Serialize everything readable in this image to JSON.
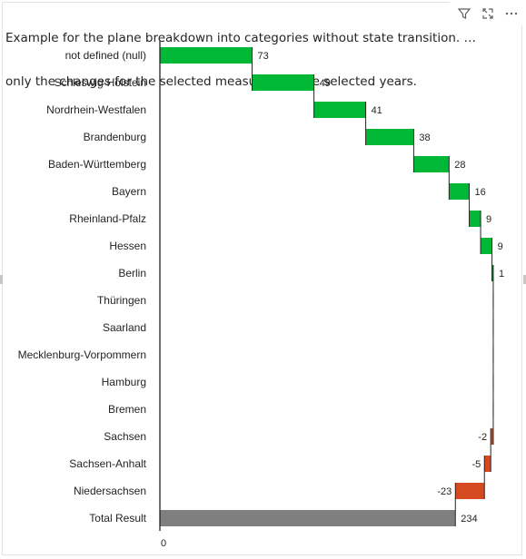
{
  "visual": {
    "title": "Example for the plane breakdown into categories without state transition. … only the changes for the selected measure and the selected years.",
    "title_line1": "Example for the plane breakdown into categories without state transition. …",
    "title_line2": "only the changes for the selected measure and the selected years.",
    "toolbar": [
      {
        "name": "filter-icon",
        "glyph": "⏷"
      },
      {
        "name": "focus-mode-icon",
        "glyph": "⤢"
      },
      {
        "name": "more-options-icon",
        "glyph": "⋯"
      }
    ]
  },
  "chart_data": {
    "type": "bar",
    "subtype": "waterfall",
    "orientation": "horizontal",
    "categories": [
      "not defined (null)",
      "Schleswig-Holstein",
      "Nordrhein-Westfalen",
      "Brandenburg",
      "Baden-Württemberg",
      "Bayern",
      "Rheinland-Pfalz",
      "Hessen",
      "Berlin",
      "Thüringen",
      "Saarland",
      "Mecklenburg-Vorpommern",
      "Hamburg",
      "Bremen",
      "Sachsen",
      "Sachsen-Anhalt",
      "Niedersachsen",
      "Total Result"
    ],
    "values": [
      73,
      49,
      41,
      38,
      28,
      16,
      9,
      9,
      1,
      0,
      0,
      0,
      0,
      0,
      -2,
      -5,
      -23,
      234
    ],
    "value_labels": [
      "73",
      "49",
      "41",
      "38",
      "28",
      "16",
      "9",
      "9",
      "1",
      "",
      "",
      "",
      "",
      "",
      "-2",
      "-5",
      "-23",
      "234"
    ],
    "total_index": 17,
    "xlim": [
      0,
      264
    ],
    "x_tick_labels": [
      "0"
    ],
    "colors": {
      "increase": "#00b836",
      "decrease": "#d64a22",
      "total": "#7f7f7f",
      "connector": "#252423",
      "axis": "#252423"
    },
    "title": "",
    "xlabel": "",
    "ylabel": ""
  }
}
